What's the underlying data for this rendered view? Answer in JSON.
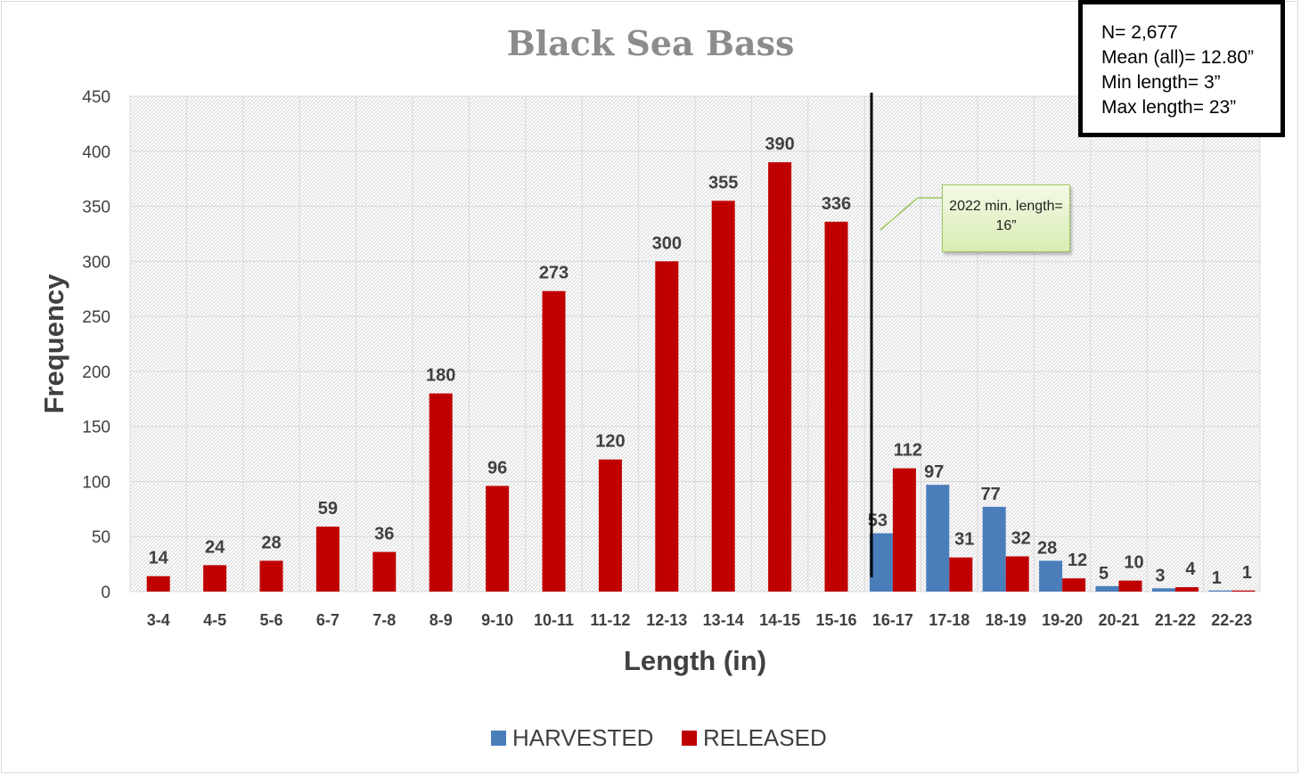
{
  "chart_data": {
    "type": "bar",
    "title": "Black Sea Bass",
    "xlabel": "Length (in)",
    "ylabel": "Frequency",
    "ylim": [
      0,
      450
    ],
    "yticks": [
      0,
      50,
      100,
      150,
      200,
      250,
      300,
      350,
      400,
      450
    ],
    "grid": true,
    "legend_position": "bottom",
    "categories": [
      "3-4",
      "4-5",
      "5-6",
      "6-7",
      "7-8",
      "8-9",
      "9-10",
      "10-11",
      "11-12",
      "12-13",
      "13-14",
      "14-15",
      "15-16",
      "16-17",
      "17-18",
      "18-19",
      "19-20",
      "20-21",
      "21-22",
      "22-23"
    ],
    "series": [
      {
        "name": "HARVESTED",
        "color": "#4a7ebb",
        "values": [
          null,
          null,
          null,
          null,
          null,
          null,
          null,
          null,
          null,
          null,
          null,
          null,
          null,
          53,
          97,
          77,
          28,
          5,
          3,
          1
        ]
      },
      {
        "name": "RELEASED",
        "color": "#c00000",
        "values": [
          14,
          24,
          28,
          59,
          36,
          180,
          96,
          273,
          120,
          300,
          355,
          390,
          336,
          112,
          31,
          32,
          12,
          10,
          4,
          1
        ]
      }
    ],
    "reference_line": {
      "x_between": [
        "15-16",
        "16-17"
      ],
      "label": "2022 min. length= 16”"
    },
    "stats_box": [
      "N= 2,677",
      "Mean (all)= 12.80”",
      "Min length= 3”",
      "Max length= 23”"
    ]
  },
  "colors": {
    "harvested": "#4a7ebb",
    "released": "#c00000",
    "grid": "#d9d9d9",
    "title": "#8c8c8c"
  }
}
